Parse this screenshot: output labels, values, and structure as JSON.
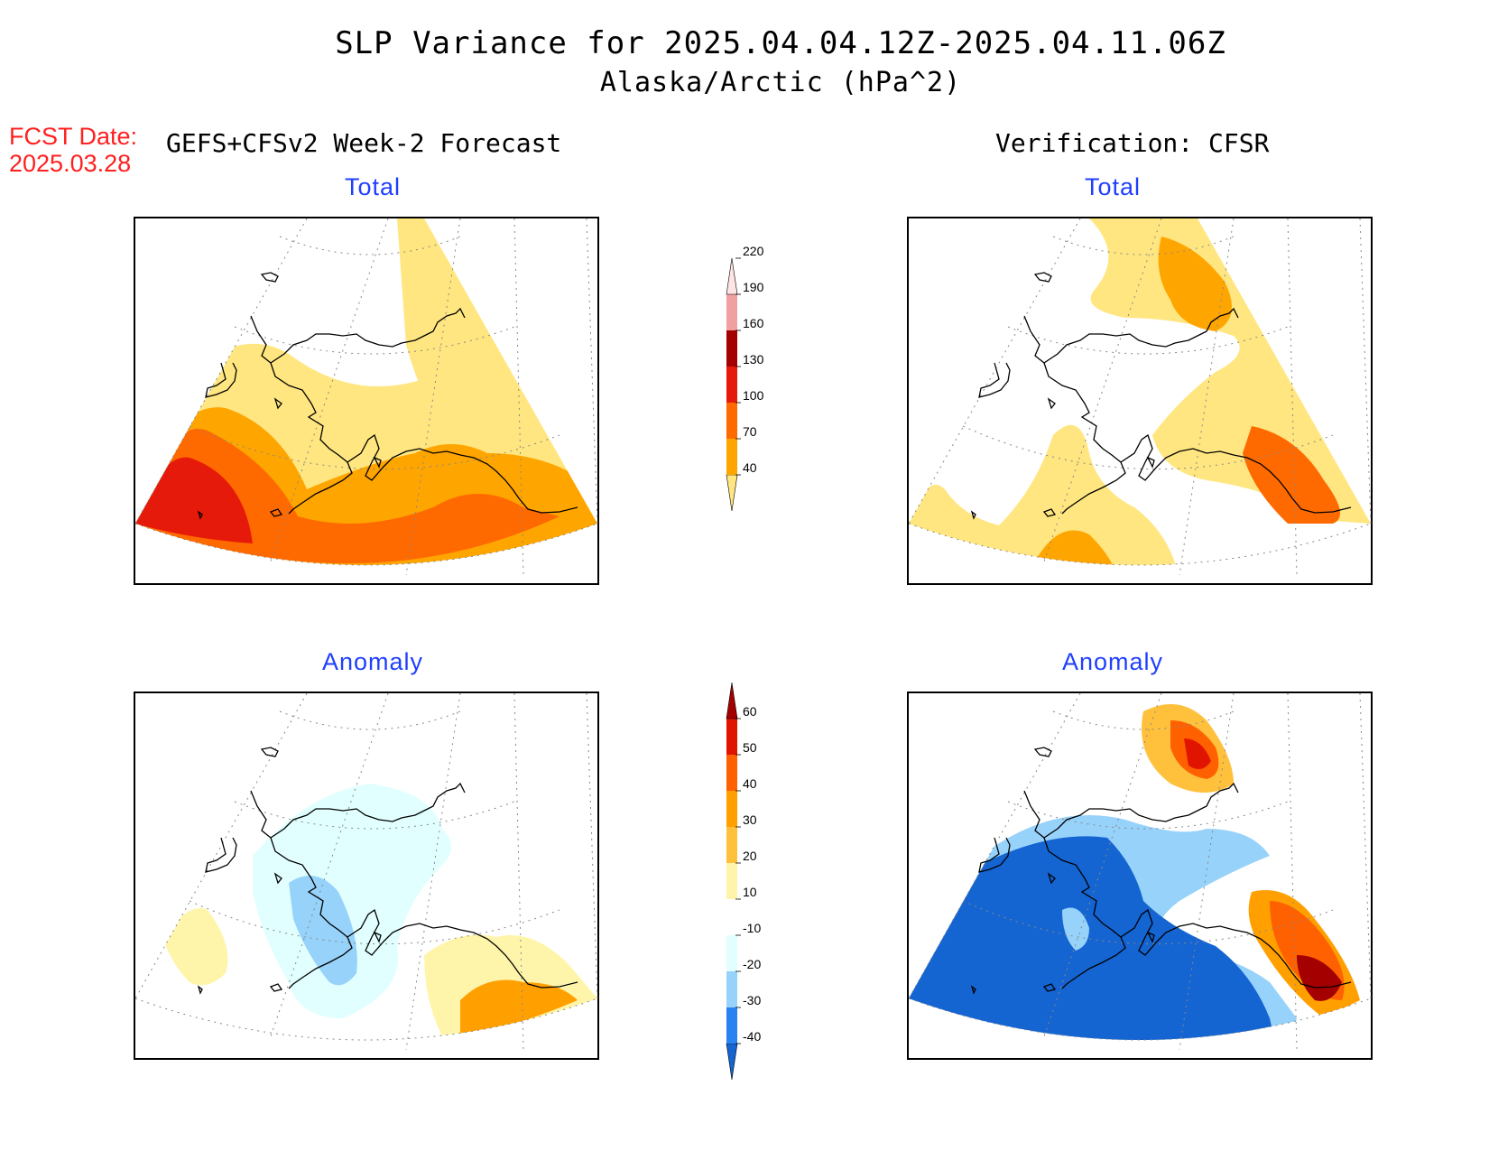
{
  "header": {
    "title": "SLP Variance for 2025.04.04.12Z-2025.04.11.06Z",
    "subtitle": "Alaska/Arctic (hPa^2)",
    "fcst_date_label": "FCST Date:",
    "fcst_date_value": "2025.03.28"
  },
  "columns": {
    "left": "GEFS+CFSv2 Week-2 Forecast",
    "right": "Verification: CFSR"
  },
  "panels": {
    "top_left": "Total",
    "top_right": "Total",
    "bottom_left": "Anomaly",
    "bottom_right": "Anomaly"
  },
  "colorbar_total": {
    "labels": [
      "40",
      "70",
      "100",
      "130",
      "160",
      "190",
      "220"
    ],
    "colors": [
      "#ffe680",
      "#ffa500",
      "#ff6a00",
      "#e61a0a",
      "#a50000",
      "#f0a0a0",
      "#ffe4e4"
    ]
  },
  "colorbar_anomaly": {
    "labels": [
      "-40",
      "-30",
      "-20",
      "-10",
      "10",
      "20",
      "30",
      "40",
      "50",
      "60"
    ],
    "colors": [
      "#1464d2",
      "#2882f0",
      "#96d2fa",
      "#e1ffff",
      "#ffffff",
      "#fff5aa",
      "#ffc03c",
      "#ffa000",
      "#ff6000",
      "#e11400",
      "#a50000"
    ]
  }
}
